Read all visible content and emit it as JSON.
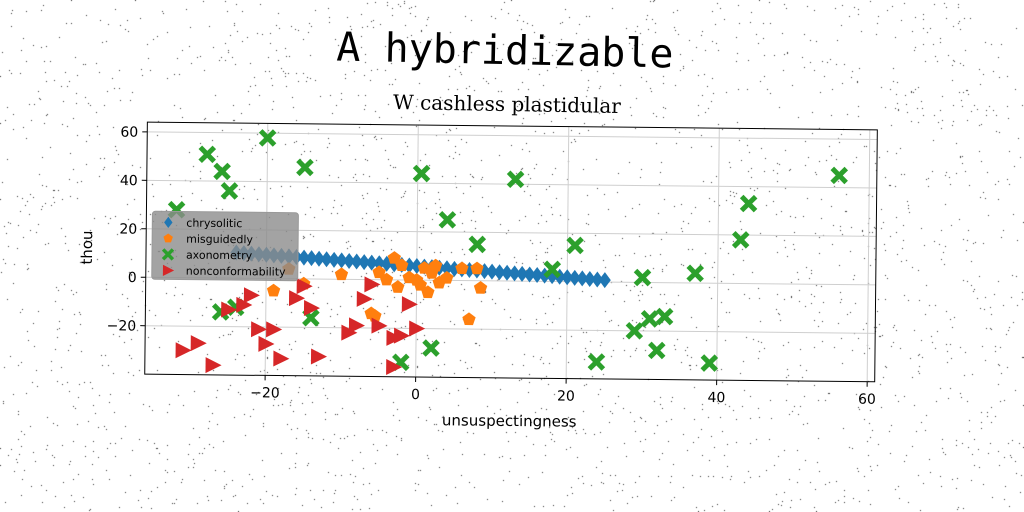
{
  "chart_data": {
    "type": "scatter",
    "title": "A hybridizable",
    "subtitle": "W cashless plastidular",
    "xlabel": "unsuspectingness",
    "ylabel": "thou",
    "xlim": [
      -36,
      61
    ],
    "ylim": [
      -40,
      64
    ],
    "xticks": [
      -20,
      0,
      20,
      40,
      60
    ],
    "yticks": [
      -20,
      0,
      20,
      40,
      60
    ],
    "grid": true,
    "legend_position": "center-left",
    "series": [
      {
        "name": "chrysolitic",
        "marker": "diamond",
        "color": "#1f77b4",
        "x": [
          -24,
          -23,
          -22,
          -21,
          -20,
          -19,
          -18,
          -17,
          -16,
          -15,
          -14,
          -13,
          -12,
          -11,
          -10,
          -9,
          -8,
          -7,
          -6,
          -5,
          -4,
          -3,
          -2,
          -1,
          0,
          1,
          2,
          3,
          4,
          5,
          6,
          7,
          8,
          9,
          10,
          11,
          12,
          13,
          14,
          15,
          16,
          17,
          18,
          19,
          20,
          21,
          22,
          23,
          24,
          25
        ],
        "y": [
          10.6,
          10.4,
          10.2,
          10,
          9.8,
          9.6,
          9.4,
          9.2,
          9,
          8.8,
          8.6,
          8.4,
          8.2,
          8,
          7.8,
          7.6,
          7.4,
          7.2,
          7,
          6.8,
          6.6,
          6.4,
          6.2,
          6,
          5.8,
          5.6,
          5.4,
          5.2,
          5,
          4.8,
          4.6,
          4.4,
          4.2,
          4,
          3.8,
          3.6,
          3.4,
          3.2,
          3,
          2.8,
          2.6,
          2.4,
          2.2,
          2,
          1.8,
          1.6,
          1.4,
          1.2,
          1,
          0.8
        ]
      },
      {
        "name": "misguidedly",
        "marker": "pentagon",
        "color": "#ff7f0e",
        "x": [
          -19,
          -17,
          -15,
          -10,
          -6,
          -5.5,
          -5,
          -4,
          -3,
          -2.5,
          -2,
          -1,
          0,
          0.5,
          1,
          1.5,
          2,
          2.5,
          3,
          4,
          6,
          7,
          8,
          8.5
        ],
        "y": [
          -5,
          4,
          -2,
          2,
          -14,
          -15,
          3,
          0,
          9,
          -3,
          6,
          1,
          0,
          -2,
          5,
          -5,
          3,
          6,
          -1,
          1,
          5,
          -16,
          5,
          -3
        ]
      },
      {
        "name": "axonometry",
        "marker": "x",
        "color": "#2ca02c",
        "x": [
          -32,
          -28,
          -26,
          -25,
          -24,
          -20,
          -15,
          -14,
          0.5,
          4,
          8,
          13,
          18,
          21,
          24,
          29,
          30,
          31,
          32,
          33,
          37,
          39,
          43,
          44,
          56,
          -26,
          2,
          -2
        ],
        "y": [
          28,
          51,
          44,
          36,
          -12,
          58,
          46,
          -16,
          44,
          25,
          15,
          42,
          5,
          15,
          -33,
          -20,
          2,
          -15,
          -28,
          -14,
          4,
          -33,
          18,
          33,
          45,
          -14,
          -28,
          -34
        ]
      },
      {
        "name": "nonconformability",
        "marker": "triangle-right",
        "color": "#d62728",
        "x": [
          -31,
          -29,
          -27,
          -25,
          -23,
          -22,
          -21,
          -20,
          -19,
          -18,
          -16,
          -15,
          -14,
          -13,
          -9,
          -8,
          -7,
          -6,
          -5,
          -3,
          -2,
          -1,
          0,
          -3
        ],
        "y": [
          -30,
          -27,
          -36,
          -13,
          -11,
          -7,
          -21,
          -27,
          -21,
          -33,
          -8,
          -3,
          -12,
          -32,
          -22,
          -19,
          -8,
          -2,
          -19,
          -24,
          -23,
          -10,
          -20,
          -36
        ]
      }
    ]
  }
}
